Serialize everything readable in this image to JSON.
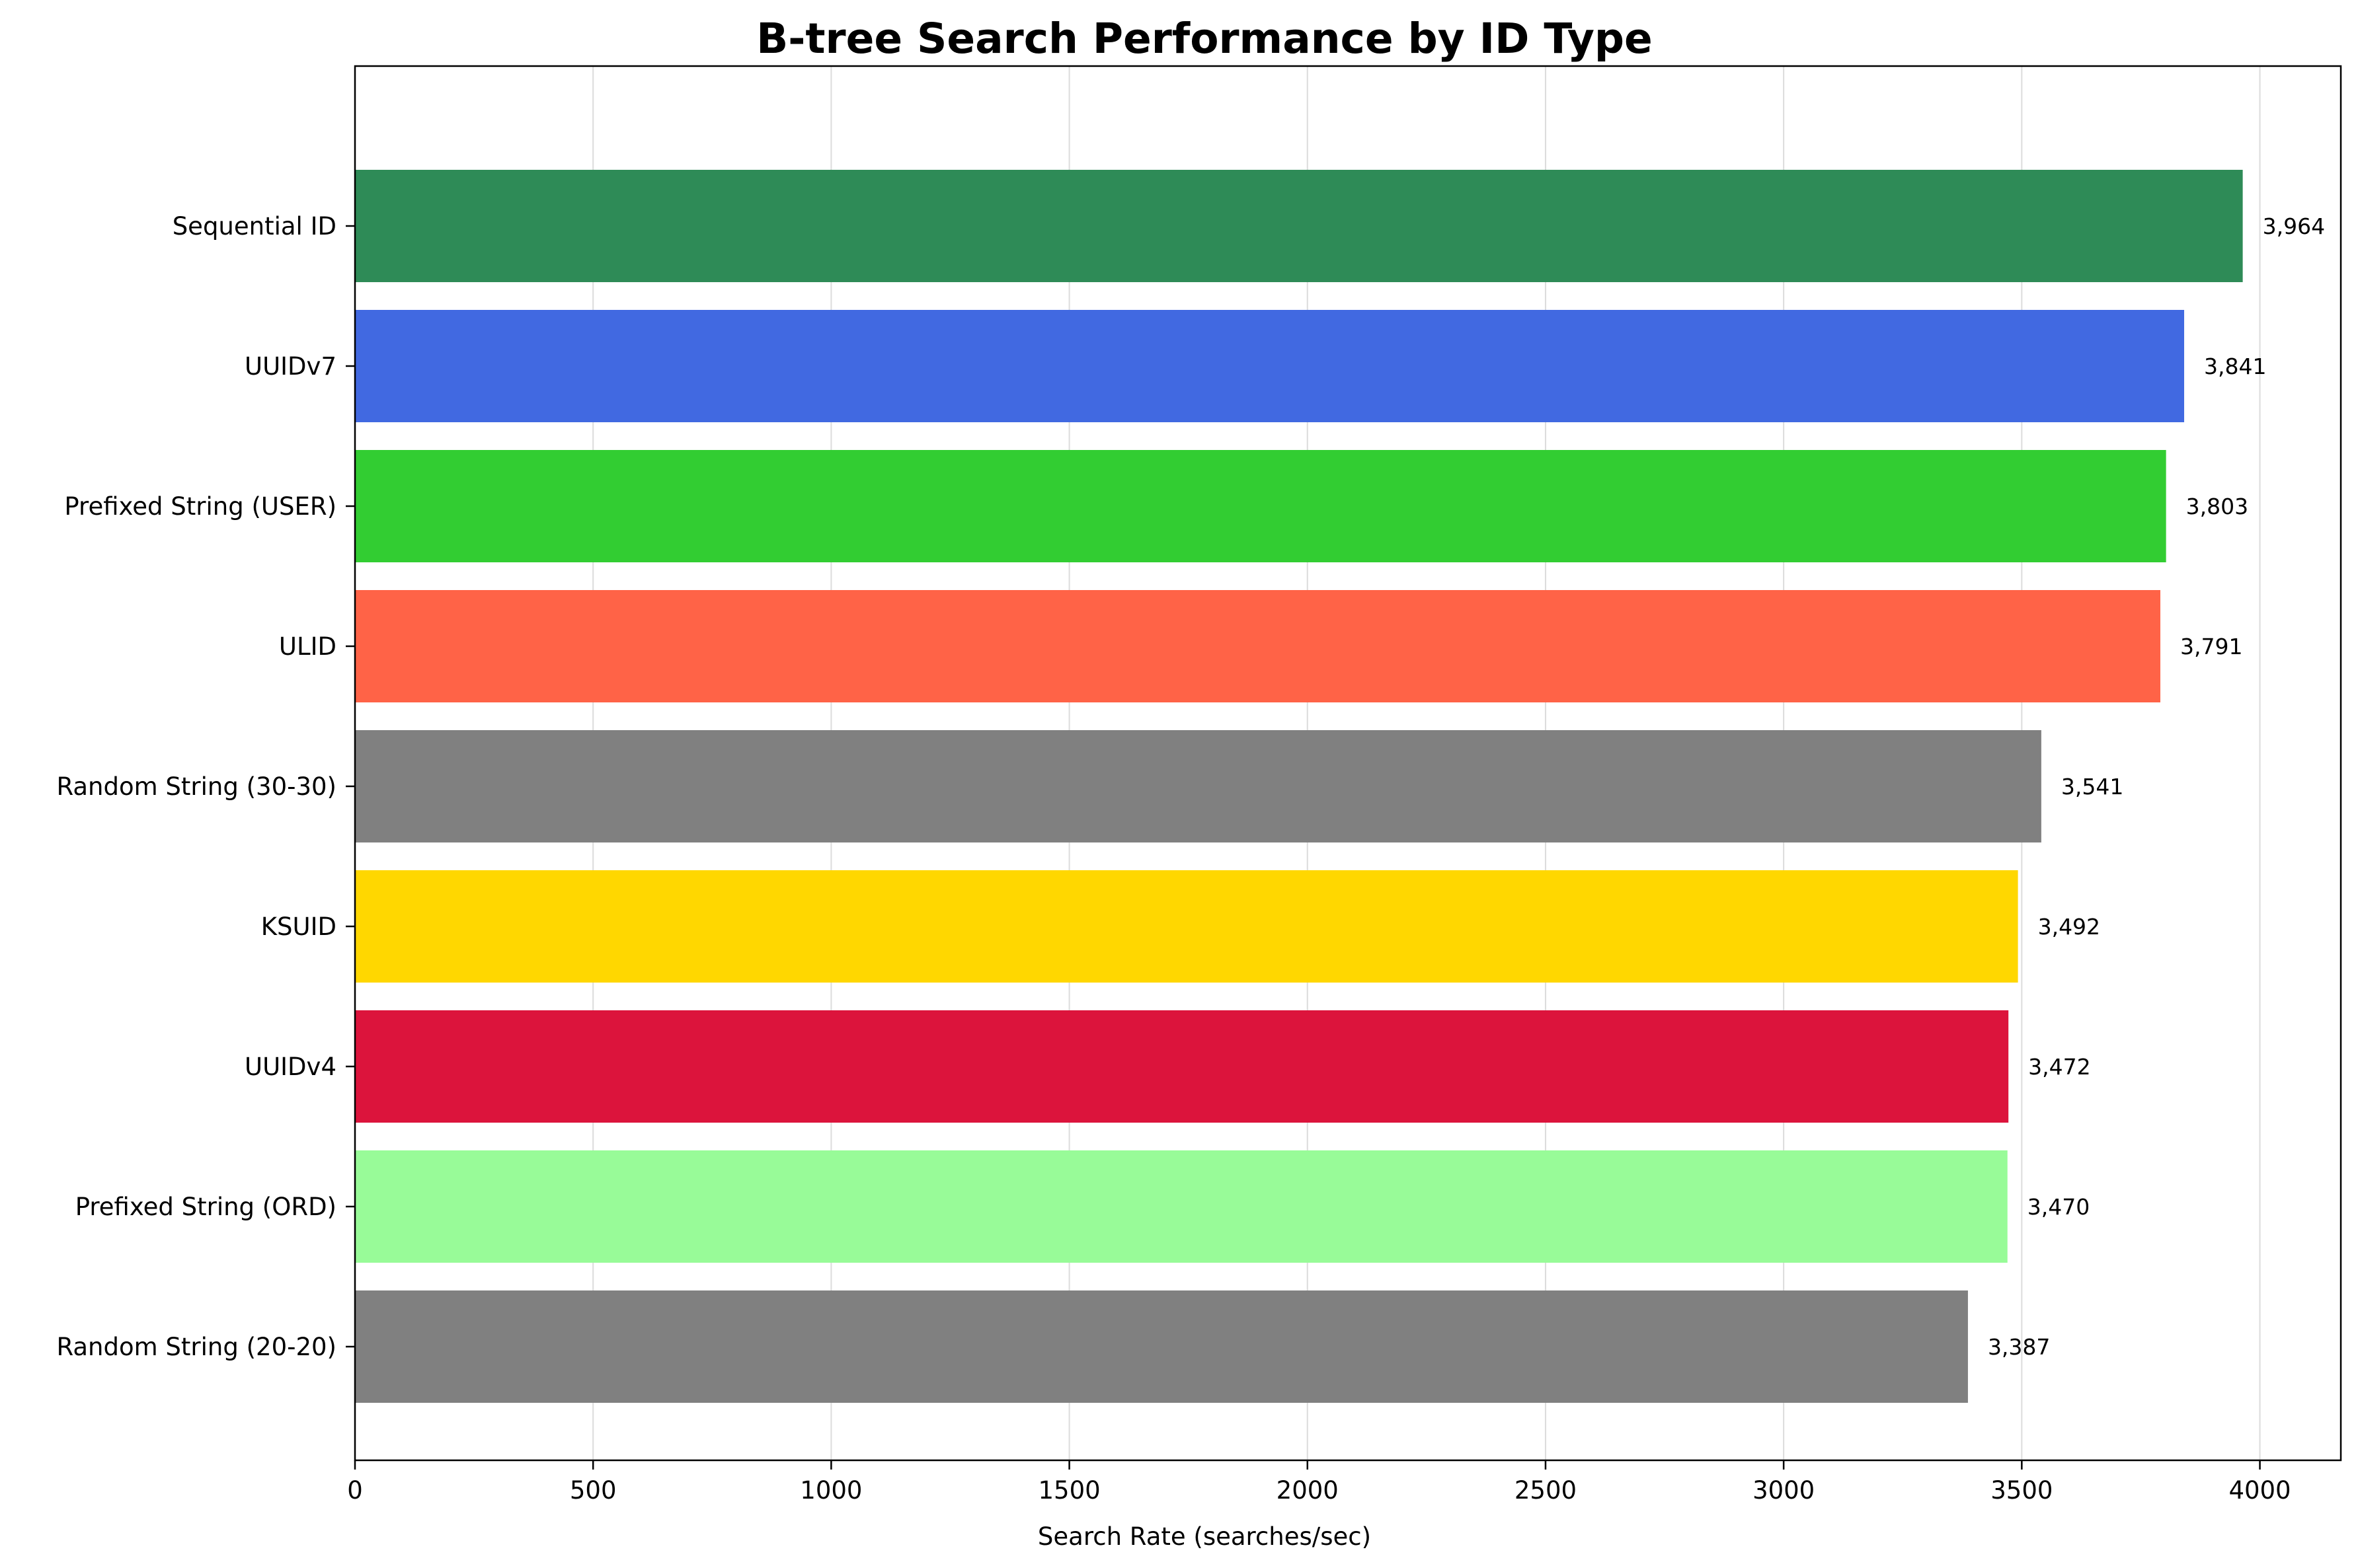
{
  "chart_data": {
    "type": "bar",
    "orientation": "horizontal",
    "title": "B-tree Search Performance by ID Type",
    "xlabel": "Search Rate (searches/sec)",
    "ylabel": "",
    "xlim": [
      0,
      4170
    ],
    "xticks": [
      0,
      500,
      1000,
      1500,
      2000,
      2500,
      3000,
      3500,
      4000
    ],
    "grid": "x",
    "categories": [
      "Sequential ID",
      "UUIDv7",
      "Prefixed String (USER)",
      "ULID",
      "Random String (30-30)",
      "KSUID",
      "UUIDv4",
      "Prefixed String (ORD)",
      "Random String (20-20)"
    ],
    "values": [
      3964,
      3841,
      3803,
      3791,
      3541,
      3492,
      3472,
      3470,
      3387
    ],
    "value_labels": [
      "3,964",
      "3,841",
      "3,803",
      "3,791",
      "3,541",
      "3,492",
      "3,472",
      "3,470",
      "3,387"
    ],
    "colors": [
      "#2e8b57",
      "#4169e1",
      "#32cd32",
      "#ff6347",
      "#808080",
      "#ffd700",
      "#dc143c",
      "#98fb98",
      "#808080"
    ]
  }
}
